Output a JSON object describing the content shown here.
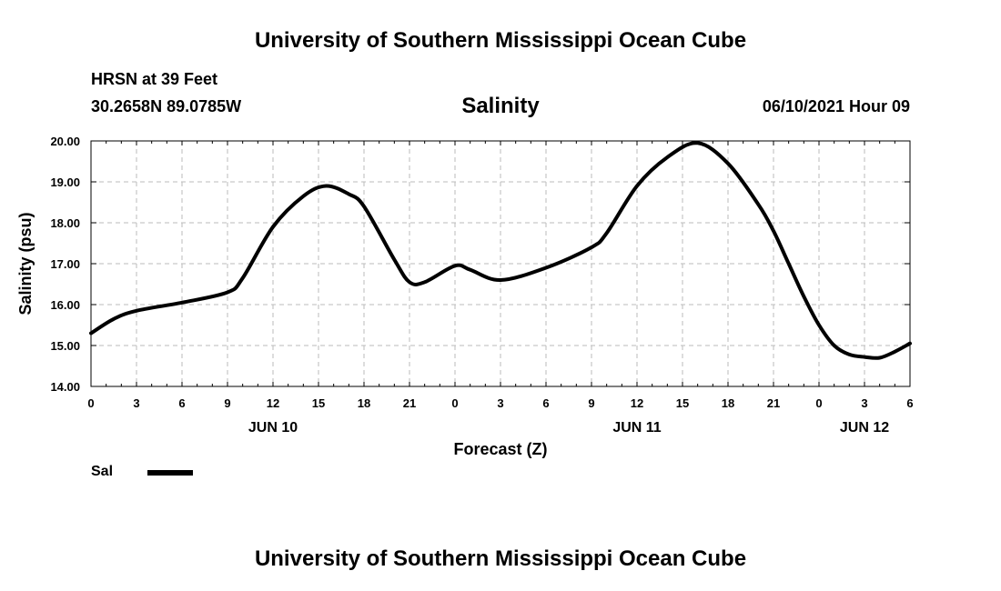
{
  "header": {
    "title": "University of Southern Mississippi Ocean Cube",
    "station": "HRSN at 39 Feet",
    "coords": "30.2658N  89.0785W",
    "datetime": "06/10/2021 Hour 09"
  },
  "footer": {
    "title": "University of Southern Mississippi Ocean Cube"
  },
  "legend": {
    "label": "Sal"
  },
  "colors": {
    "line": "#000000",
    "grid": "#bbbbbb",
    "frame": "#000000"
  },
  "chart_data": {
    "type": "line",
    "title": "Salinity",
    "xlabel": "Forecast (Z)",
    "ylabel": "Salinity (psu)",
    "ylim": [
      14.0,
      20.0
    ],
    "xlim": [
      0,
      54
    ],
    "yticks": [
      "14.00",
      "15.00",
      "16.00",
      "17.00",
      "18.00",
      "19.00",
      "20.00"
    ],
    "xtick_hours": [
      0,
      3,
      6,
      9,
      12,
      15,
      18,
      21,
      24,
      27,
      30,
      33,
      36,
      39,
      42,
      45,
      48,
      51,
      54
    ],
    "xtick_labels": [
      "0",
      "3",
      "6",
      "9",
      "12",
      "15",
      "18",
      "21",
      "0",
      "3",
      "6",
      "9",
      "12",
      "15",
      "18",
      "21",
      "0",
      "3",
      "6"
    ],
    "day_labels": [
      {
        "hour": 12,
        "label": "JUN 10"
      },
      {
        "hour": 36,
        "label": "JUN 11"
      },
      {
        "hour": 51,
        "label": "JUN 12"
      }
    ],
    "grid": true,
    "series": [
      {
        "name": "Sal",
        "x": [
          0,
          1.5,
          3,
          6,
          9,
          10,
          12,
          14,
          15.5,
          17,
          18,
          20,
          21,
          22,
          24,
          25,
          27,
          30,
          33,
          34,
          36,
          38,
          40,
          42,
          44,
          45,
          46,
          47,
          48,
          49,
          50,
          51,
          52,
          53,
          54
        ],
        "y": [
          15.3,
          15.65,
          15.85,
          16.05,
          16.3,
          16.65,
          17.9,
          18.65,
          18.9,
          18.7,
          18.4,
          17.1,
          16.55,
          16.55,
          16.95,
          16.85,
          16.6,
          16.9,
          17.4,
          17.75,
          18.9,
          19.6,
          19.95,
          19.45,
          18.45,
          17.8,
          17.0,
          16.2,
          15.5,
          15.0,
          14.78,
          14.72,
          14.7,
          14.85,
          15.05
        ]
      }
    ]
  }
}
